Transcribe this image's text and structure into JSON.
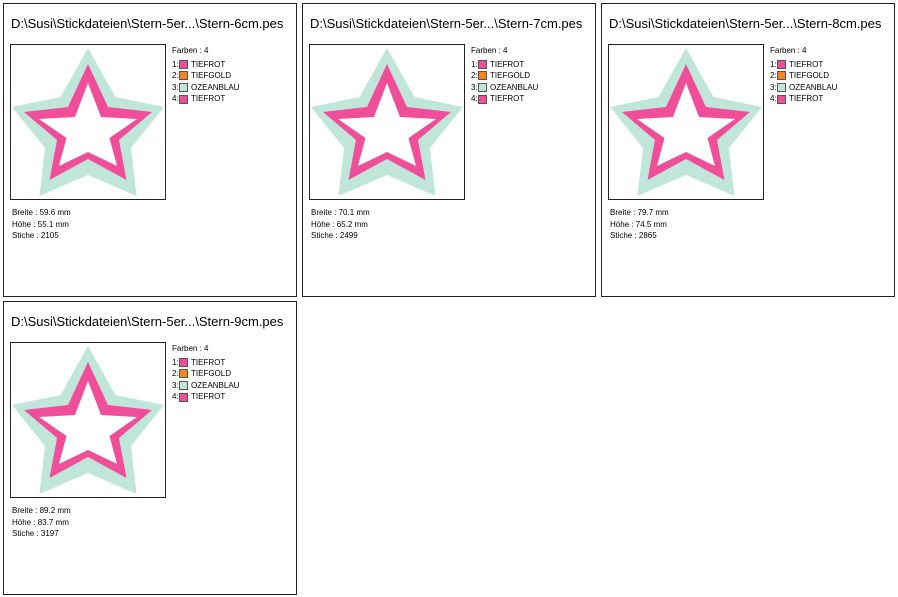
{
  "colors": {
    "TIEFROT": "#f04e98",
    "TIEFGOLD": "#f5841f",
    "OZEANBLAU": "#bfe6d9"
  },
  "cards": [
    {
      "title": "D:\\Susi\\Stickdateien\\Stern-5er...\\Stern-6cm.pes",
      "farben": "Farben : 4",
      "color_list": [
        {
          "idx": "1:",
          "name": "TIEFROT",
          "hex": "#f04e98"
        },
        {
          "idx": "2:",
          "name": "TIEFGOLD",
          "hex": "#f5841f"
        },
        {
          "idx": "3:",
          "name": "OZEANBLAU",
          "hex": "#bfe6d9"
        },
        {
          "idx": "4:",
          "name": "TIEFROT",
          "hex": "#f04e98"
        }
      ],
      "breite": "Breite : 59.6 mm",
      "hoehe": "Höhe : 55.1 mm",
      "stiche": "Stiche : 2105"
    },
    {
      "title": "D:\\Susi\\Stickdateien\\Stern-5er...\\Stern-7cm.pes",
      "farben": "Farben : 4",
      "color_list": [
        {
          "idx": "1:",
          "name": "TIEFROT",
          "hex": "#f04e98"
        },
        {
          "idx": "2:",
          "name": "TIEFGOLD",
          "hex": "#f5841f"
        },
        {
          "idx": "3:",
          "name": "OZEANBLAU",
          "hex": "#bfe6d9"
        },
        {
          "idx": "4:",
          "name": "TIEFROT",
          "hex": "#f04e98"
        }
      ],
      "breite": "Breite : 70.1 mm",
      "hoehe": "Höhe : 65.2 mm",
      "stiche": "Stiche : 2499"
    },
    {
      "title": "D:\\Susi\\Stickdateien\\Stern-5er...\\Stern-8cm.pes",
      "farben": "Farben : 4",
      "color_list": [
        {
          "idx": "1:",
          "name": "TIEFROT",
          "hex": "#f04e98"
        },
        {
          "idx": "2:",
          "name": "TIEFGOLD",
          "hex": "#f5841f"
        },
        {
          "idx": "3:",
          "name": "OZEANBLAU",
          "hex": "#bfe6d9"
        },
        {
          "idx": "4:",
          "name": "TIEFROT",
          "hex": "#f04e98"
        }
      ],
      "breite": "Breite : 79.7 mm",
      "hoehe": "Höhe : 74.5 mm",
      "stiche": "Stiche : 2865"
    },
    {
      "title": "D:\\Susi\\Stickdateien\\Stern-5er...\\Stern-9cm.pes",
      "farben": "Farben : 4",
      "color_list": [
        {
          "idx": "1:",
          "name": "TIEFROT",
          "hex": "#f04e98"
        },
        {
          "idx": "2:",
          "name": "TIEFGOLD",
          "hex": "#f5841f"
        },
        {
          "idx": "3:",
          "name": "OZEANBLAU",
          "hex": "#bfe6d9"
        },
        {
          "idx": "4:",
          "name": "TIEFROT",
          "hex": "#f04e98"
        }
      ],
      "breite": "Breite : 89.2 mm",
      "hoehe": "Höhe : 83.7 mm",
      "stiche": "Stiche : 3197"
    }
  ]
}
